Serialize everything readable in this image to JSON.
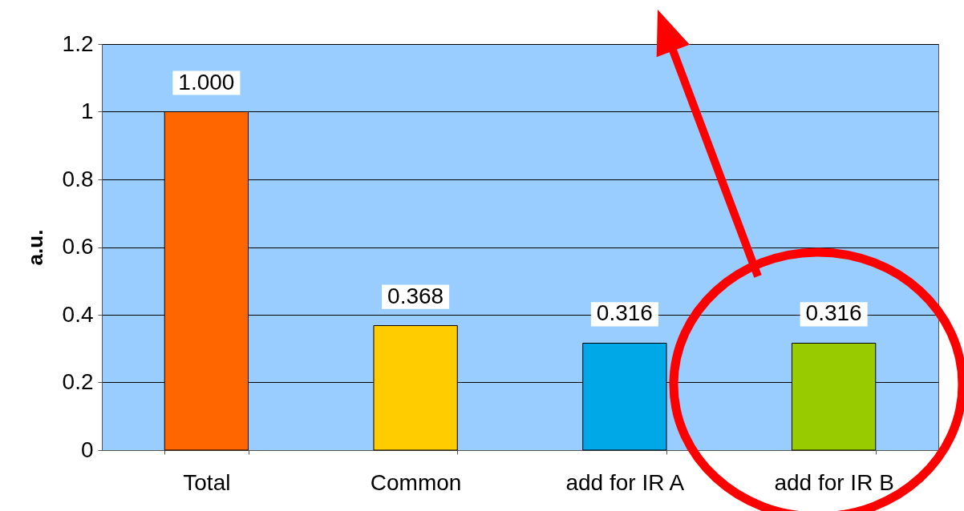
{
  "chart_data": {
    "type": "bar",
    "ylabel": "a.u.",
    "categories": [
      "Total",
      "Common",
      "add for IR A",
      "add for IR B"
    ],
    "values": [
      1.0,
      0.368,
      0.316,
      0.316
    ],
    "colors": [
      "#ff6600",
      "#ffcc00",
      "#00a8e8",
      "#99cc00"
    ],
    "value_labels": [
      "1.000",
      "0.368",
      "0.316",
      "0.316"
    ],
    "ylim": [
      0,
      1.2
    ],
    "yticks": [
      0,
      0.2,
      0.4,
      0.6,
      0.8,
      1,
      1.2
    ],
    "grid": "y",
    "legend": false
  }
}
